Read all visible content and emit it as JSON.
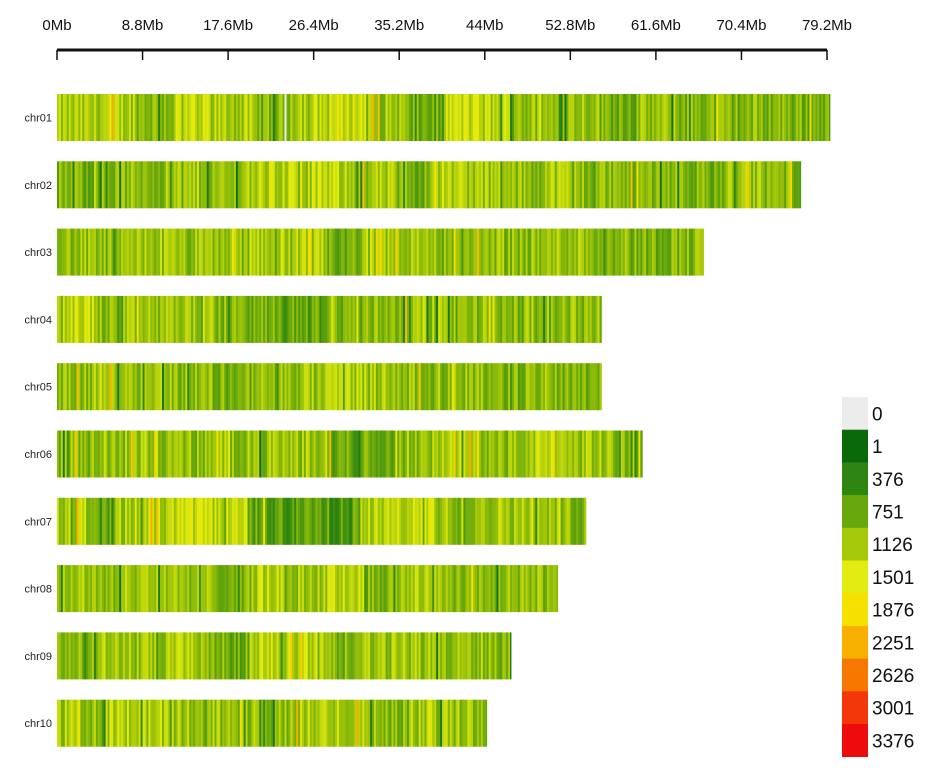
{
  "chart_data": {
    "type": "heatmap",
    "title": "",
    "xlabel": "",
    "ylabel": "",
    "x_unit": "Mb",
    "xlim": [
      0,
      79.2
    ],
    "x_ticks": [
      0,
      8.8,
      17.6,
      26.4,
      35.2,
      44,
      52.8,
      61.6,
      70.4,
      79.2
    ],
    "x_tick_labels": [
      "0Mb",
      "8.8Mb",
      "17.6Mb",
      "26.4Mb",
      "35.2Mb",
      "44Mb",
      "52.8Mb",
      "61.6Mb",
      "70.4Mb",
      "79.2Mb"
    ],
    "chromosomes": [
      {
        "name": "chr01",
        "length": 79.5,
        "density_bins": [
          1100,
          1200,
          1000,
          1300,
          1150,
          900,
          1250,
          1400,
          1100,
          800,
          1350,
          1200,
          1000,
          1100,
          900,
          1000,
          950,
          900,
          950,
          900
        ]
      },
      {
        "name": "chr02",
        "length": 76.5,
        "density_bins": [
          900,
          950,
          1000,
          1100,
          1000,
          1200,
          1300,
          1250,
          1100,
          900,
          1250,
          1100,
          1000,
          1150,
          1000,
          950,
          1000,
          900,
          1050,
          950
        ]
      },
      {
        "name": "chr03",
        "length": 66.5,
        "density_bins": [
          1000,
          950,
          1100,
          1000,
          1050,
          1200,
          1100,
          800,
          1250,
          1100,
          900,
          1050,
          1000,
          1100,
          1000,
          900,
          950
        ]
      },
      {
        "name": "chr04",
        "length": 56.0,
        "density_bins": [
          1300,
          1000,
          1050,
          1100,
          950,
          800,
          750,
          900,
          1000,
          1100,
          1000,
          950,
          1050,
          1000
        ]
      },
      {
        "name": "chr05",
        "length": 56.0,
        "density_bins": [
          1050,
          1150,
          1100,
          1000,
          900,
          1000,
          1050,
          1200,
          1100,
          1000,
          1050,
          900,
          1000,
          950
        ]
      },
      {
        "name": "chr06",
        "length": 60.2,
        "density_bins": [
          1000,
          1050,
          1100,
          1000,
          1050,
          1000,
          1100,
          800,
          900,
          1050,
          1150,
          1000,
          1200,
          1100,
          1000
        ]
      },
      {
        "name": "chr07",
        "length": 54.4,
        "density_bins": [
          1150,
          1100,
          1200,
          1350,
          1300,
          700,
          650,
          650,
          1200,
          1300,
          1100,
          1150,
          1100,
          1000
        ]
      },
      {
        "name": "chr08",
        "length": 51.5,
        "density_bins": [
          1100,
          1050,
          1150,
          1000,
          1000,
          1200,
          1100,
          1300,
          950,
          1200,
          1000,
          950,
          1000
        ]
      },
      {
        "name": "chr09",
        "length": 46.7,
        "density_bins": [
          1000,
          1100,
          1050,
          1150,
          850,
          1200,
          1250,
          900,
          1050,
          1100,
          1000,
          1050
        ]
      },
      {
        "name": "chr10",
        "length": 44.2,
        "density_bins": [
          1100,
          1250,
          1150,
          1100,
          1050,
          1000,
          1150,
          1200,
          1000,
          1100,
          1050
        ]
      }
    ],
    "legend": {
      "placement": "bottom-right",
      "entries": [
        {
          "label": "0",
          "color": "#ececec"
        },
        {
          "label": "1",
          "color": "#0a6a0a"
        },
        {
          "label": "376",
          "color": "#2f8512"
        },
        {
          "label": "751",
          "color": "#68a80c"
        },
        {
          "label": "1126",
          "color": "#a6c80a"
        },
        {
          "label": "1501",
          "color": "#e2ec10"
        },
        {
          "label": "1876",
          "color": "#f6e000"
        },
        {
          "label": "2251",
          "color": "#f8b000"
        },
        {
          "label": "2626",
          "color": "#f67800"
        },
        {
          "label": "3001",
          "color": "#f2380a"
        },
        {
          "label": "3376",
          "color": "#ec0c0c"
        }
      ]
    }
  }
}
